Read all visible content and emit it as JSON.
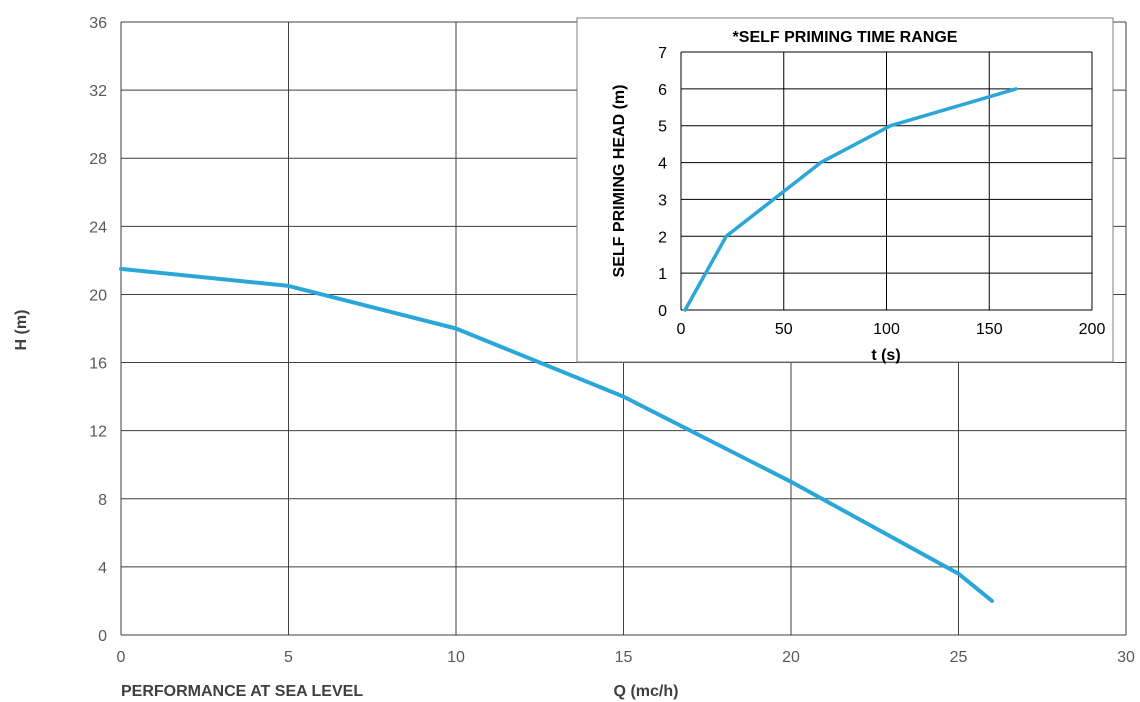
{
  "chart_data": [
    {
      "type": "line",
      "title": "",
      "xlabel": "Q (mc/h)",
      "ylabel": "H (m)",
      "footer_label": "PERFORMANCE AT SEA LEVEL",
      "xlim": [
        0,
        30
      ],
      "ylim": [
        0,
        36
      ],
      "xticks": [
        "0",
        "5",
        "10",
        "15",
        "20",
        "25",
        "30"
      ],
      "yticks": [
        "0",
        "4",
        "8",
        "12",
        "16",
        "20",
        "24",
        "28",
        "32",
        "36"
      ],
      "grid": true,
      "series": [
        {
          "color": "#2aa7d8",
          "x": [
            0,
            5,
            10,
            15,
            20,
            25,
            26
          ],
          "y": [
            21.5,
            20.5,
            18,
            14,
            9,
            3.6,
            2
          ]
        }
      ]
    },
    {
      "type": "line",
      "title": "*SELF PRIMING TIME RANGE",
      "xlabel": "t (s)",
      "ylabel": "SELF PRIMING HEAD (m)",
      "xlim": [
        0,
        200
      ],
      "ylim": [
        0,
        7
      ],
      "xticks": [
        "0",
        "50",
        "100",
        "150",
        "200"
      ],
      "yticks": [
        "0",
        "1",
        "2",
        "3",
        "4",
        "5",
        "6",
        "7"
      ],
      "grid": true,
      "series": [
        {
          "color": "#2aa7d8",
          "x": [
            2,
            22,
            68,
            102,
            163
          ],
          "y": [
            0,
            2,
            4,
            5,
            6
          ]
        }
      ]
    }
  ]
}
